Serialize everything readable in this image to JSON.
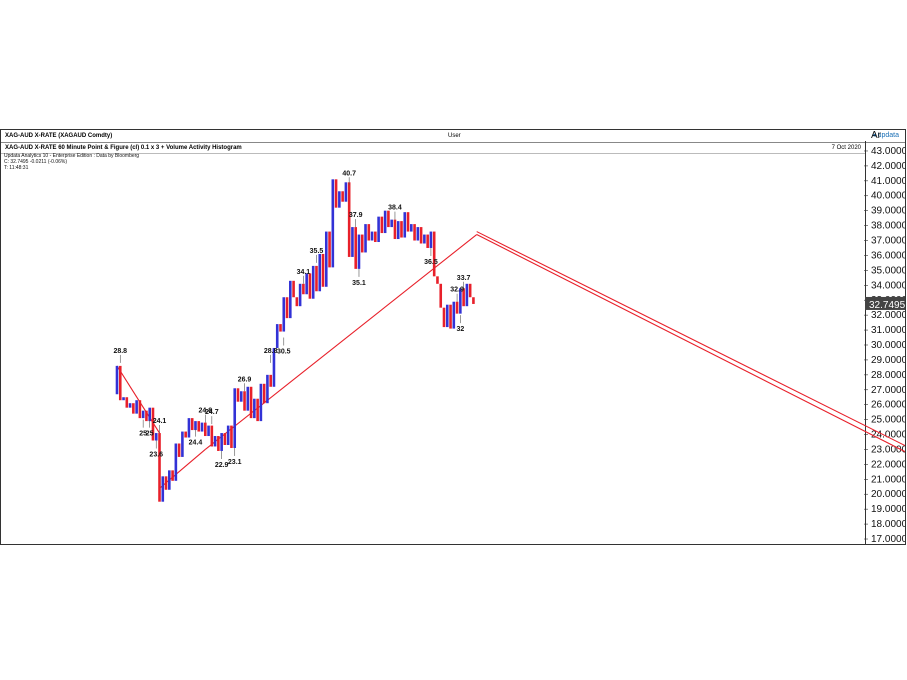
{
  "window": {
    "title": "XAG-AUD X-RATE (XAGAUD Comdty)",
    "user": "User",
    "brand": "updata"
  },
  "chart_header": {
    "title": "XAG-AUD X-RATE 60 Minute Point & Figure (cl) 0.1 x 3 + Volume Activity Histogram",
    "date": "7 Oct 2020"
  },
  "info": {
    "line1": "Updata Analytics 10 - Enterprise Edition : Data by Bloomberg",
    "line2": "C: 32.7495  -0.0211 (-0.06%)",
    "line3": "T: 11:48:31"
  },
  "axis": {
    "corner_label": "Ar",
    "ticks": [
      "43.0000",
      "42.0000",
      "41.0000",
      "40.0000",
      "39.0000",
      "38.0000",
      "37.0000",
      "36.0000",
      "35.0000",
      "34.0000",
      "33.0000",
      "32.0000",
      "31.0000",
      "30.0000",
      "29.0000",
      "28.0000",
      "27.0000",
      "26.0000",
      "25.0000",
      "24.0000",
      "23.0000",
      "22.0000",
      "21.0000",
      "20.0000",
      "19.0000",
      "18.0000",
      "17.0000"
    ],
    "last_price": "32.7495",
    "last_price_color": "#444444"
  },
  "colors": {
    "x_column": "#3232d6",
    "o_column": "#e8202a",
    "trendline": "#e8202a",
    "label_line": "#555555"
  },
  "chart_data": {
    "type": "point-and-figure",
    "ylim": [
      16.8,
      43.4
    ],
    "price_path": [
      26.7,
      28.6,
      26.3,
      26.5,
      25.8,
      26.1,
      25.4,
      26.3,
      25.1,
      25.6,
      24.9,
      25.8,
      23.6,
      24.1,
      19.5,
      21.2,
      20.3,
      21.6,
      20.9,
      23.4,
      22.5,
      24.2,
      23.8,
      25.1,
      24.3,
      24.9,
      24.2,
      24.8,
      23.9,
      24.6,
      23.2,
      23.9,
      22.9,
      24.1,
      23.3,
      24.6,
      23.1,
      27.1,
      26.2,
      26.9,
      25.6,
      27.2,
      25.1,
      26.4,
      24.9,
      27.4,
      26.1,
      28.0,
      27.2,
      29.8,
      31.4,
      30.9,
      33.2,
      31.8,
      34.3,
      33.2,
      32.6,
      34.1,
      33.4,
      34.8,
      33.1,
      35.3,
      33.6,
      36.1,
      33.9,
      37.6,
      35.2,
      41.1,
      39.2,
      40.3,
      39.6,
      40.9,
      35.9,
      37.9,
      35.1,
      37.4,
      36.2,
      38.1,
      37.0,
      37.6,
      36.9,
      38.6,
      37.5,
      39.0,
      37.9,
      38.4,
      37.1,
      38.3,
      37.2,
      38.9,
      37.6,
      38.1,
      37.0,
      37.9,
      36.8,
      37.4,
      36.5,
      37.6,
      34.6,
      34.1,
      32.5,
      31.2,
      32.7,
      31.1,
      32.9,
      32.1,
      33.8,
      32.6,
      34.1,
      33.2,
      32.7495
    ],
    "labels": [
      {
        "text": "23.1",
        "price": 23.1
      },
      {
        "text": "25",
        "price": 25.0
      },
      {
        "text": "22.9",
        "price": 22.9
      },
      {
        "text": "23.6",
        "price": 23.6
      },
      {
        "text": "25",
        "price": 25.0
      },
      {
        "text": "24.1",
        "price": 24.1
      },
      {
        "text": "24.8",
        "price": 24.8
      },
      {
        "text": "24.4",
        "price": 24.4
      },
      {
        "text": "24.7",
        "price": 24.7
      },
      {
        "text": "26.9",
        "price": 26.9
      },
      {
        "text": "28.8",
        "price": 28.8
      },
      {
        "text": "28.8",
        "price": 28.8
      },
      {
        "text": "30.5",
        "price": 30.5
      },
      {
        "text": "33.7",
        "price": 33.7
      },
      {
        "text": "32.9",
        "price": 32.9
      },
      {
        "text": "40.7",
        "price": 40.7
      },
      {
        "text": "38.4",
        "price": 38.4
      },
      {
        "text": "35.1",
        "price": 35.1
      },
      {
        "text": "32",
        "price": 32.0
      },
      {
        "text": "35.5",
        "price": 35.5
      },
      {
        "text": "36.5",
        "price": 36.5
      },
      {
        "text": "34.1",
        "price": 34.1
      },
      {
        "text": "37.9",
        "price": 37.9
      }
    ],
    "trendlines": [
      {
        "name": "resistance-1",
        "from": [
          0.0,
          28.6
        ],
        "to": [
          13.0,
          24.1
        ]
      },
      {
        "name": "support-1",
        "from": [
          13.0,
          20.4
        ],
        "to": [
          27.0,
          23.0
        ]
      },
      {
        "name": "support-2",
        "from": [
          27.0,
          23.0
        ],
        "to": [
          110.0,
          37.4
        ]
      },
      {
        "name": "resistance-2",
        "from": [
          110.0,
          37.6
        ],
        "to": [
          300.0,
          16.8
        ]
      },
      {
        "name": "resistance-3",
        "from": [
          110.0,
          37.4
        ],
        "to": [
          300.0,
          16.3
        ]
      }
    ]
  }
}
